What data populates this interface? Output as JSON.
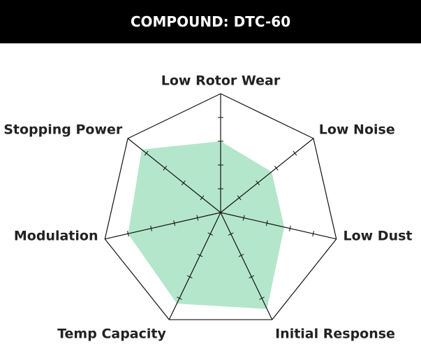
{
  "chart_data": {
    "type": "radar",
    "title": "COMPOUND: DTC-60",
    "categories": [
      "Low Rotor Wear",
      "Low Noise",
      "Low Dust",
      "Initial Response",
      "Temp Capacity",
      "Modulation",
      "Stopping Power"
    ],
    "values": [
      6,
      5.5,
      5.5,
      9,
      8.5,
      8,
      8.5
    ],
    "color": "#b4e6cb",
    "rlim": [
      0,
      10
    ],
    "rticks": [
      2,
      4,
      6,
      8
    ]
  }
}
